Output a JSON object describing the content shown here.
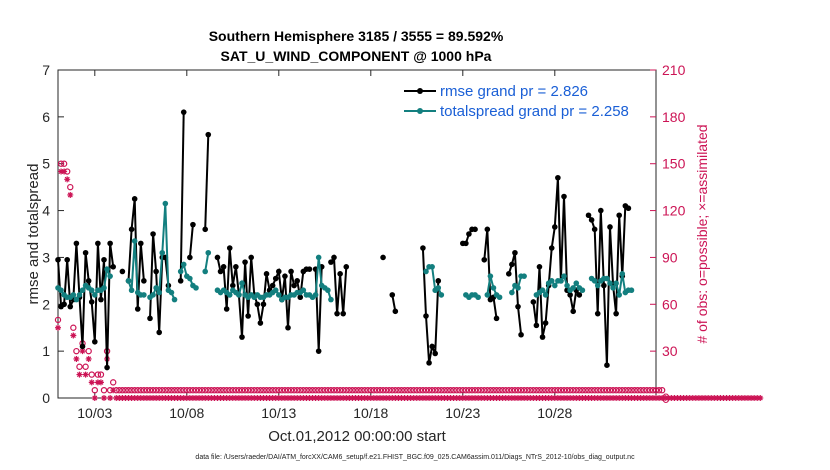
{
  "chart_data": {
    "type": "line",
    "title": "Southern Hemisphere 3185 / 3555 = 89.592%",
    "subtitle": "SAT_U_WIND_COMPONENT @ 1000 hPa",
    "xlabel": "Oct.01,2012 00:00:00 start",
    "ylabel": "rmse and totalspread",
    "ylabel_right": "# of obs: o=possible; ×=assimilated",
    "footer": "data file: /Users/raeder/DAI/ATM_forcXX/CAM6_setup/f.e21.FHIST_BGC.f09_025.CAM6assim.011/Diags_NTrS_2012-10/obs_diag_output.nc",
    "xlim": [
      1,
      33.5
    ],
    "ylim": [
      0,
      7
    ],
    "ylim_right": [
      0,
      210
    ],
    "x_tick_values": [
      3,
      8,
      13,
      18,
      23,
      28
    ],
    "x_tick_labels": [
      "10/03",
      "10/08",
      "10/13",
      "10/18",
      "10/23",
      "10/28"
    ],
    "y_ticks": [
      0,
      1,
      2,
      3,
      4,
      5,
      6,
      7
    ],
    "y_ticks_right": [
      0,
      30,
      60,
      90,
      120,
      150,
      180,
      210
    ],
    "legend_position": "top-right",
    "grid": false,
    "colors": {
      "rmse": "#000000",
      "spread": "#137f7f",
      "obs": "#cc1455",
      "legend_text": "#1a5fd6"
    },
    "series": [
      {
        "name": "rmse grand pr = 2.826",
        "color": "#000000",
        "y": [
          2.95,
          1.95,
          2.0,
          2.95,
          1.95,
          2.1,
          3.3,
          2.15,
          1.1,
          3.1,
          2.5,
          2.05,
          1.2,
          3.3,
          2.1,
          2.95,
          0.65,
          3.3,
          2.8,
          null,
          null,
          2.7,
          null,
          2.5,
          3.6,
          4.25,
          1.9,
          3.3,
          2.5,
          null,
          1.7,
          3.5,
          2.7,
          1.4,
          3.0,
          3.0,
          2.4,
          null,
          null,
          null,
          2.5,
          6.1,
          null,
          3.0,
          3.7,
          null,
          null,
          null,
          3.6,
          5.62,
          null,
          null,
          3.0,
          2.7,
          2.8,
          1.9,
          3.2,
          2.4,
          2.8,
          2.2,
          1.3,
          2.9,
          1.75,
          3.0,
          2.2,
          2.0,
          1.6,
          2.0,
          2.65,
          2.3,
          2.4,
          2.55,
          2.7,
          2.1,
          2.6,
          1.5,
          2.7,
          2.4,
          2.5,
          2.15,
          2.7,
          2.75,
          2.75,
          null,
          2.75,
          1.0,
          2.8,
          null,
          null,
          2.9,
          3.0,
          1.8,
          2.65,
          1.8,
          2.8,
          null,
          null,
          null,
          null,
          null,
          null,
          null,
          null,
          null,
          null,
          null,
          3.0,
          null,
          null,
          2.2,
          1.85,
          null,
          null,
          null,
          null,
          null,
          null,
          null,
          null,
          3.2,
          1.75,
          0.75,
          1.1,
          0.95,
          2.5,
          null,
          null,
          null,
          null,
          null,
          null,
          null,
          3.3,
          3.3,
          3.5,
          3.6,
          3.6,
          null,
          null,
          2.95,
          3.6,
          2.1,
          2.15,
          1.7,
          null,
          null,
          null,
          2.65,
          2.85,
          3.1,
          1.95,
          1.35,
          null,
          null,
          null,
          2.05,
          1.55,
          2.8,
          1.3,
          1.6,
          2.4,
          3.2,
          3.65,
          4.7,
          2.5,
          4.3,
          2.3,
          2.2,
          1.85,
          2.3,
          2.2,
          null,
          null,
          3.9,
          3.8,
          3.6,
          1.8,
          4.0,
          2.4,
          0.7,
          3.65,
          2.4,
          1.8,
          3.9,
          2.6,
          4.1,
          4.05
        ]
      },
      {
        "name": "totalspread grand pr = 2.258",
        "color": "#137f7f",
        "y": [
          2.35,
          2.3,
          2.2,
          2.15,
          2.15,
          2.2,
          2.1,
          2.2,
          2.3,
          2.4,
          2.35,
          2.3,
          2.2,
          2.3,
          2.3,
          2.35,
          2.75,
          2.6,
          null,
          null,
          null,
          null,
          null,
          2.5,
          2.3,
          3.35,
          2.25,
          2.2,
          2.2,
          null,
          2.15,
          2.2,
          2.35,
          2.25,
          3.1,
          4.15,
          2.3,
          2.25,
          2.1,
          null,
          2.7,
          2.85,
          2.6,
          2.55,
          2.4,
          2.35,
          null,
          null,
          2.7,
          3.1,
          null,
          null,
          2.3,
          2.25,
          2.3,
          2.25,
          2.2,
          2.3,
          2.25,
          2.2,
          2.45,
          2.2,
          2.15,
          2.2,
          2.15,
          2.2,
          2.15,
          2.15,
          2.2,
          2.2,
          2.25,
          2.3,
          2.2,
          2.1,
          2.15,
          2.15,
          2.2,
          2.2,
          2.25,
          2.25,
          2.3,
          2.2,
          2.2,
          2.15,
          2.2,
          3.0,
          2.4,
          2.35,
          2.3,
          2.1,
          null,
          null,
          null,
          null,
          null,
          null,
          null,
          null,
          null,
          null,
          null,
          null,
          null,
          null,
          null,
          null,
          null,
          null,
          null,
          null,
          null,
          null,
          null,
          null,
          null,
          null,
          null,
          null,
          null,
          null,
          2.7,
          2.8,
          2.8,
          2.3,
          2.35,
          2.2,
          null,
          null,
          null,
          null,
          null,
          null,
          null,
          2.2,
          2.15,
          2.2,
          2.2,
          2.15,
          null,
          null,
          2.2,
          2.6,
          2.35,
          2.2,
          2.15,
          null,
          null,
          null,
          2.25,
          2.4,
          2.35,
          2.6,
          2.6,
          null,
          null,
          null,
          2.2,
          2.25,
          2.3,
          2.2,
          2.45,
          2.5,
          2.4,
          2.5,
          2.5,
          2.6,
          2.4,
          2.3,
          2.35,
          2.45,
          2.35,
          2.3,
          null,
          null,
          2.55,
          2.5,
          2.4,
          2.5,
          2.55,
          2.55,
          2.45,
          2.35,
          2.45,
          2.2,
          2.65,
          2.25,
          2.3,
          2.3
        ]
      }
    ],
    "obs_possible_count": [
      50,
      150,
      150,
      145,
      135,
      45,
      30,
      20,
      35,
      20,
      30,
      15,
      5,
      15,
      15,
      5,
      30,
      5,
      10,
      5,
      5,
      5,
      5,
      5,
      5,
      5,
      5,
      5,
      5,
      5,
      5,
      5,
      5,
      5,
      5,
      5,
      5,
      5,
      5,
      5,
      5,
      5,
      5,
      5,
      5,
      5,
      5,
      5,
      5,
      5,
      5,
      5,
      5,
      5,
      5,
      5,
      5,
      5,
      5,
      5,
      5,
      5,
      5,
      5,
      5,
      5,
      5,
      5,
      5,
      5,
      5,
      5,
      5,
      5,
      5,
      5,
      5,
      5,
      5,
      5,
      5,
      5,
      5,
      5,
      5,
      5,
      5,
      5,
      5,
      5,
      5,
      5,
      5,
      5,
      5,
      5,
      5,
      5,
      5,
      5,
      5,
      5,
      5,
      5,
      5,
      5,
      5,
      5,
      5,
      5,
      5,
      5,
      5,
      5,
      5,
      5,
      5,
      5,
      5,
      5,
      5,
      5,
      5,
      5,
      5,
      5,
      5,
      5,
      5,
      5,
      5,
      5,
      5,
      5,
      5,
      5,
      5,
      5,
      5,
      5,
      5,
      5,
      5,
      5,
      5,
      5,
      5,
      5,
      5,
      5,
      5,
      5,
      5,
      5,
      5,
      5,
      5,
      5,
      5,
      5,
      5,
      5,
      5,
      5,
      5,
      5,
      5,
      5,
      5,
      5,
      5,
      5,
      5,
      5,
      5,
      5,
      5,
      5,
      5,
      5,
      5,
      5,
      5,
      5,
      5,
      5,
      5,
      5,
      5,
      5,
      5,
      5,
      5,
      5,
      5,
      5,
      5,
      5
    ],
    "obs_assimilated_count": [
      45,
      145,
      145,
      140,
      130,
      40,
      25,
      15,
      30,
      15,
      25,
      10,
      0,
      10,
      10,
      0,
      25,
      0,
      5,
      0,
      0,
      0,
      0,
      0,
      0,
      0,
      0,
      0,
      0,
      0,
      0,
      0,
      0,
      0,
      0,
      0,
      0,
      0,
      0,
      0,
      0,
      0,
      0,
      0,
      0,
      0,
      0,
      0,
      0,
      0,
      0,
      0,
      0,
      0,
      0,
      0,
      0,
      0,
      0,
      0,
      0,
      0,
      0,
      0,
      0,
      0,
      0,
      0,
      0,
      0,
      0,
      0,
      0,
      0,
      0,
      0,
      0,
      0,
      0,
      0,
      0,
      0,
      0,
      0,
      0,
      0,
      0,
      0,
      0,
      0,
      0,
      0,
      0,
      0,
      0,
      0,
      0,
      0,
      0,
      0,
      0,
      0,
      0,
      0,
      0,
      0,
      0,
      0,
      0,
      0,
      0,
      0,
      0,
      0,
      0,
      0,
      0,
      0,
      0,
      0,
      0,
      0,
      0,
      0,
      0,
      0,
      0,
      0,
      0,
      0,
      0,
      0,
      0,
      0,
      0,
      0,
      0,
      0,
      0,
      0,
      0,
      0,
      0,
      0,
      0,
      0,
      0,
      0,
      0,
      0,
      0,
      0,
      0,
      0,
      0,
      0,
      0,
      0,
      0,
      0,
      0,
      0,
      0,
      0,
      0,
      0,
      0,
      0,
      0,
      0,
      0,
      0,
      0,
      0,
      0,
      0,
      0,
      0,
      0,
      0,
      0,
      0,
      0,
      0,
      0,
      0,
      0,
      0,
      0,
      0,
      0,
      0,
      0,
      0,
      0,
      0,
      0,
      0,
      0,
      0,
      0,
      0,
      0,
      0,
      0,
      0,
      0,
      0,
      0,
      0,
      0,
      0,
      0,
      0,
      0,
      0,
      0,
      0,
      0,
      0,
      0,
      0,
      0,
      0,
      0,
      0,
      0,
      0,
      0,
      0
    ]
  }
}
